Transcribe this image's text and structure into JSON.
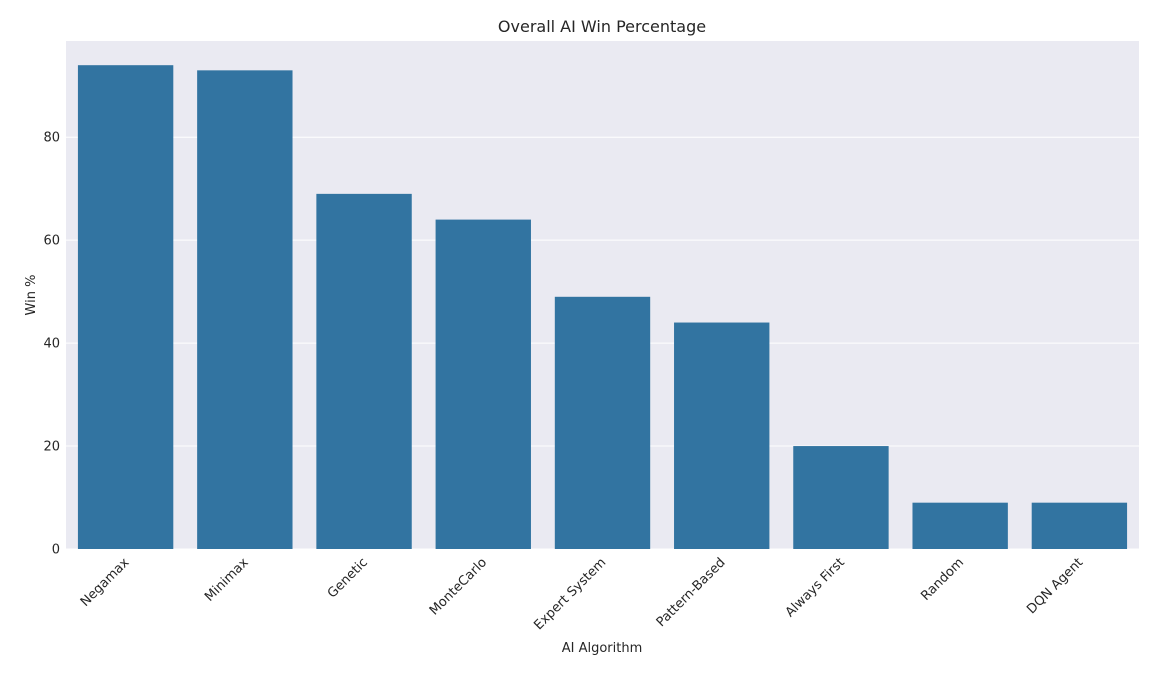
{
  "chart_data": {
    "type": "bar",
    "title": "Overall AI Win Percentage",
    "xlabel": "AI Algorithm",
    "ylabel": "Win %",
    "categories": [
      "Negamax",
      "Minimax",
      "Genetic",
      "MonteCarlo",
      "Expert System",
      "Pattern-Based",
      "Always First",
      "Random",
      "DQN Agent"
    ],
    "values": [
      94,
      93,
      69,
      64,
      49,
      44,
      20,
      9,
      9
    ],
    "ylim": [
      0,
      98.7
    ],
    "yticks": [
      0,
      20,
      40,
      60,
      80
    ],
    "grid": true,
    "colors": {
      "bar": "#3274a1",
      "plot_background": "#eaeaf2",
      "grid": "#ffffff",
      "text": "#262626"
    }
  }
}
